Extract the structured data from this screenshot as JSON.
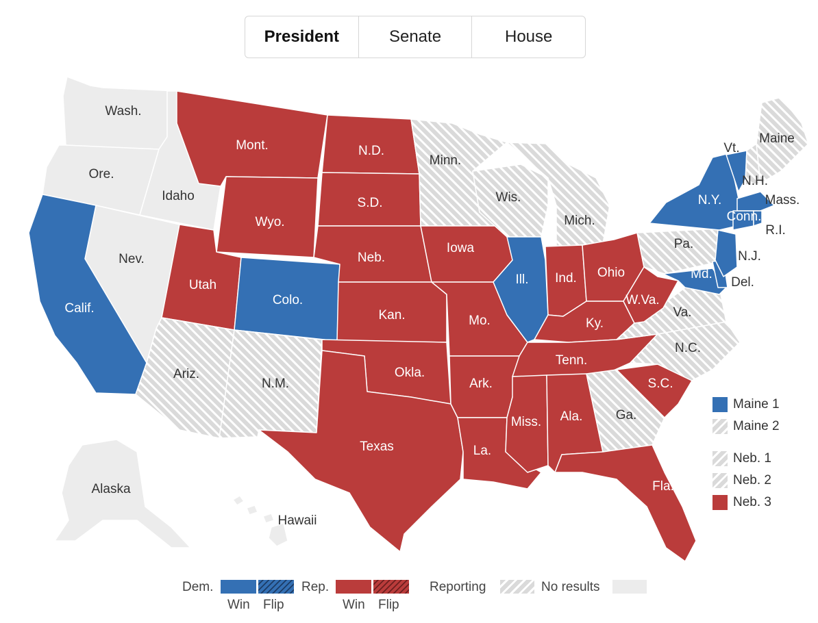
{
  "tabs": [
    {
      "label": "President",
      "active": true
    },
    {
      "label": "Senate",
      "active": false
    },
    {
      "label": "House",
      "active": false
    }
  ],
  "colors": {
    "dem": "#3470b4",
    "rep": "#ba3c3b",
    "no_results": "#ececec",
    "reporting_bg": "#dadada",
    "reporting_stripe": "#ffffff",
    "border": "#ffffff"
  },
  "states": {
    "wash": "Wash.",
    "ore": "Ore.",
    "calif": "Calif.",
    "nev": "Nev.",
    "idaho": "Idaho",
    "mont": "Mont.",
    "wyo": "Wyo.",
    "utah": "Utah",
    "colo": "Colo.",
    "ariz": "Ariz.",
    "nm": "N.M.",
    "nd": "N.D.",
    "sd": "S.D.",
    "neb": "Neb.",
    "kan": "Kan.",
    "okla": "Okla.",
    "texas": "Texas",
    "minn": "Minn.",
    "iowa": "Iowa",
    "mo": "Mo.",
    "ark": "Ark.",
    "la": "La.",
    "wis": "Wis.",
    "ill": "Ill.",
    "mich": "Mich.",
    "ind": "Ind.",
    "ohio": "Ohio",
    "ky": "Ky.",
    "tenn": "Tenn.",
    "miss": "Miss.",
    "ala": "Ala.",
    "ga": "Ga.",
    "fla": "Fla.",
    "sc": "S.C.",
    "nc": "N.C.",
    "va": "Va.",
    "wva": "W.Va.",
    "pa": "Pa.",
    "ny": "N.Y.",
    "vt": "Vt.",
    "nh": "N.H.",
    "maine": "Maine",
    "mass": "Mass.",
    "conn": "Conn.",
    "ri": "R.I.",
    "nj": "N.J.",
    "del": "Del.",
    "md": "Md.",
    "alaska": "Alaska",
    "hawaii": "Hawaii"
  },
  "districts": [
    {
      "label": "Maine 1",
      "status": "dem"
    },
    {
      "label": "Maine 2",
      "status": "reporting"
    },
    {
      "label": "Neb. 1",
      "status": "reporting"
    },
    {
      "label": "Neb. 2",
      "status": "reporting"
    },
    {
      "label": "Neb. 3",
      "status": "rep"
    }
  ],
  "legend": {
    "dem": "Dem.",
    "rep": "Rep.",
    "win": "Win",
    "flip": "Flip",
    "reporting": "Reporting",
    "no_results": "No results"
  }
}
